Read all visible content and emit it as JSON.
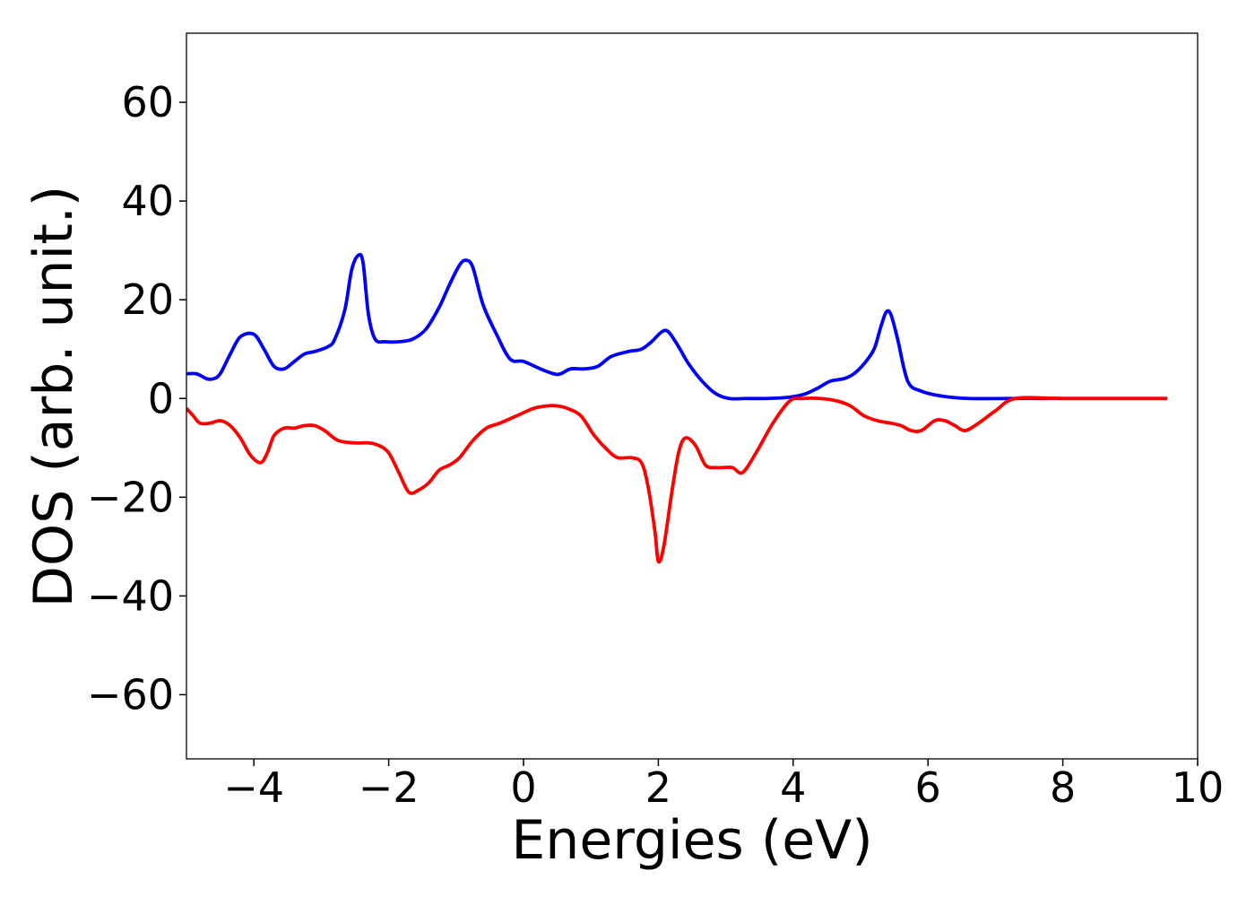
{
  "chart_data": {
    "type": "line",
    "title": "",
    "xlabel": "Energies (eV)",
    "ylabel": "DOS (arb. unit.)",
    "xlim": [
      -5,
      10
    ],
    "ylim": [
      -73,
      74
    ],
    "xticks": [
      -4,
      -2,
      0,
      2,
      4,
      6,
      8,
      10
    ],
    "yticks": [
      -60,
      -40,
      -20,
      0,
      20,
      40,
      60
    ],
    "xtick_labels": [
      "−4",
      "−2",
      "0",
      "2",
      "4",
      "6",
      "8",
      "10"
    ],
    "ytick_labels": [
      "−60",
      "−40",
      "−20",
      "0",
      "20",
      "40",
      "60"
    ],
    "grid": false,
    "legend": "none",
    "series": [
      {
        "color": "#0000ff",
        "x": [
          -5.0,
          -4.85,
          -4.7,
          -4.6,
          -4.5,
          -4.35,
          -4.2,
          -4.0,
          -3.85,
          -3.7,
          -3.55,
          -3.4,
          -3.25,
          -3.1,
          -2.9,
          -2.8,
          -2.65,
          -2.55,
          -2.45,
          -2.38,
          -2.3,
          -2.2,
          -2.05,
          -1.85,
          -1.65,
          -1.45,
          -1.25,
          -1.1,
          -0.95,
          -0.85,
          -0.75,
          -0.6,
          -0.4,
          -0.2,
          0.0,
          0.25,
          0.45,
          0.55,
          0.7,
          0.9,
          1.1,
          1.3,
          1.55,
          1.75,
          1.9,
          2.05,
          2.15,
          2.3,
          2.45,
          2.65,
          2.85,
          3.05,
          3.3,
          3.6,
          3.9,
          4.15,
          4.35,
          4.55,
          4.75,
          4.9,
          5.05,
          5.2,
          5.3,
          5.38,
          5.45,
          5.55,
          5.7,
          5.9,
          6.2,
          6.6,
          7.2,
          8.0,
          9.0,
          9.55
        ],
        "y": [
          5,
          5,
          4,
          4,
          5,
          9,
          12.5,
          13,
          10,
          6.5,
          6,
          7.5,
          9,
          9.5,
          10.5,
          12,
          18,
          26,
          29,
          27.5,
          17,
          12,
          11.5,
          11.5,
          12,
          14,
          18.5,
          23,
          27,
          28,
          26.5,
          19,
          13,
          8,
          7.5,
          6,
          5,
          5,
          6,
          6,
          6.5,
          8.5,
          9.5,
          10,
          11.5,
          13.5,
          13.5,
          10.5,
          7,
          3.5,
          1,
          0,
          0,
          0,
          0.2,
          0.8,
          2,
          3.5,
          4,
          5,
          7,
          10,
          14.5,
          17.5,
          17,
          12,
          3.5,
          1.5,
          0.5,
          0,
          0,
          0,
          0,
          0
        ]
      },
      {
        "color": "#ff0000",
        "x": [
          -5.0,
          -4.9,
          -4.8,
          -4.65,
          -4.5,
          -4.35,
          -4.2,
          -4.05,
          -3.9,
          -3.8,
          -3.7,
          -3.55,
          -3.4,
          -3.25,
          -3.1,
          -2.95,
          -2.75,
          -2.5,
          -2.3,
          -2.15,
          -2.0,
          -1.85,
          -1.7,
          -1.55,
          -1.4,
          -1.25,
          -1.1,
          -0.95,
          -0.75,
          -0.55,
          -0.35,
          -0.1,
          0.15,
          0.35,
          0.5,
          0.65,
          0.85,
          1.05,
          1.25,
          1.4,
          1.6,
          1.75,
          1.85,
          1.95,
          2.0,
          2.08,
          2.2,
          2.3,
          2.4,
          2.55,
          2.7,
          2.85,
          2.95,
          3.1,
          3.25,
          3.45,
          3.7,
          3.95,
          4.15,
          4.4,
          4.65,
          4.85,
          5.05,
          5.25,
          5.45,
          5.6,
          5.75,
          5.9,
          6.1,
          6.25,
          6.4,
          6.55,
          6.75,
          7.0,
          7.3,
          8.0,
          9.0,
          9.55
        ],
        "y": [
          -2,
          -3.5,
          -5,
          -5,
          -4.5,
          -5.5,
          -8,
          -11.5,
          -13,
          -11,
          -7.5,
          -6,
          -6,
          -5.5,
          -5.5,
          -6.5,
          -8.5,
          -9,
          -9,
          -9.5,
          -11,
          -15,
          -19,
          -18.5,
          -17,
          -14.5,
          -13.5,
          -12,
          -8.5,
          -6,
          -5,
          -3.5,
          -2,
          -1.5,
          -1.5,
          -2,
          -3.5,
          -7.5,
          -10.5,
          -12,
          -12,
          -13,
          -18,
          -27,
          -33,
          -30,
          -19,
          -11,
          -8,
          -9.5,
          -13.5,
          -14,
          -14,
          -14,
          -15,
          -11,
          -5,
          -0.5,
          0,
          0,
          -0.5,
          -1.5,
          -3.5,
          -4.5,
          -5,
          -5.5,
          -6.5,
          -6.5,
          -4.5,
          -4.5,
          -5.5,
          -6.5,
          -5,
          -2.5,
          0,
          0,
          0,
          0
        ]
      }
    ]
  }
}
